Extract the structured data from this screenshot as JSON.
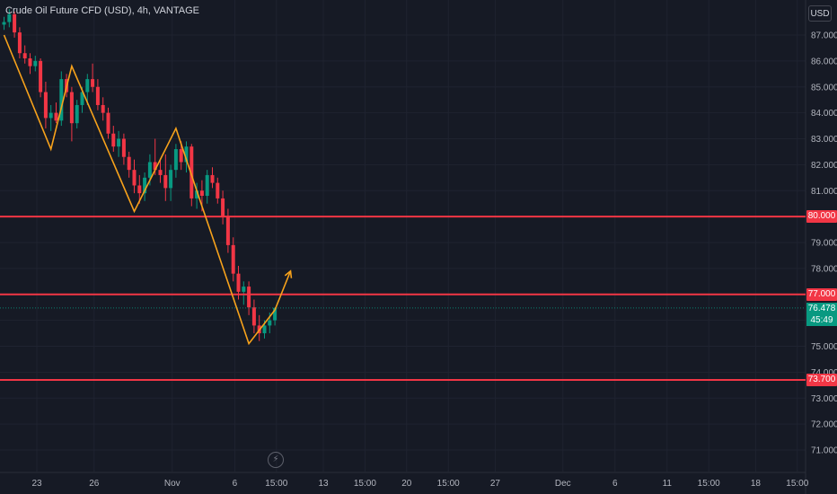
{
  "header": {
    "title": "Crude Oil Future CFD (USD), 4h, VANTAGE",
    "currency": "USD"
  },
  "colors": {
    "up": "#089981",
    "down": "#f23645",
    "level_line": "#f23645",
    "pattern": "#f7a21b",
    "background": "#161a25",
    "grid": "#1f2330",
    "axis_text": "#b2b5be"
  },
  "icons": {
    "bolt": "lightning-icon"
  },
  "chart_data": {
    "type": "candlestick",
    "title": "Crude Oil Future CFD (USD), 4h, VANTAGE",
    "y_ticks": [
      "87.000",
      "86.000",
      "85.000",
      "84.000",
      "83.000",
      "82.000",
      "81.000",
      "80.000",
      "79.000",
      "78.000",
      "77.000",
      "76.000",
      "75.000",
      "74.000",
      "73.000",
      "72.000",
      "71.000"
    ],
    "ylim": [
      70.6,
      87.9
    ],
    "x_ticks": [
      {
        "label": "23",
        "i": 0
      },
      {
        "label": "26",
        "i": 11
      },
      {
        "label": "Nov",
        "i": 26
      },
      {
        "label": "6",
        "i": 38
      },
      {
        "label": "15:00",
        "i": 46
      },
      {
        "label": "13",
        "i": 55
      },
      {
        "label": "15:00",
        "i": 63
      },
      {
        "label": "20",
        "i": 71
      },
      {
        "label": "15:00",
        "i": 79
      },
      {
        "label": "27",
        "i": 88
      },
      {
        "label": "Dec",
        "i": 101
      },
      {
        "label": "6",
        "i": 111
      },
      {
        "label": "11",
        "i": 121
      },
      {
        "label": "15:00",
        "i": 129
      },
      {
        "label": "18",
        "i": 138
      },
      {
        "label": "15:00",
        "i": 146
      }
    ],
    "candles": [
      [
        87.4,
        87.7,
        87.2,
        87.5
      ],
      [
        87.5,
        88.0,
        87.3,
        87.8
      ],
      [
        87.8,
        87.9,
        86.9,
        87.1
      ],
      [
        87.1,
        87.3,
        86.1,
        86.3
      ],
      [
        86.3,
        86.6,
        85.9,
        86.1
      ],
      [
        86.1,
        86.3,
        85.5,
        85.8
      ],
      [
        85.8,
        86.2,
        85.6,
        86.0
      ],
      [
        86.0,
        86.1,
        84.6,
        84.8
      ],
      [
        84.8,
        85.2,
        83.4,
        83.8
      ],
      [
        83.8,
        84.3,
        83.3,
        84.0
      ],
      [
        84.0,
        84.4,
        83.6,
        83.7
      ],
      [
        83.7,
        85.6,
        83.5,
        85.3
      ],
      [
        85.3,
        85.5,
        84.6,
        84.8
      ],
      [
        84.8,
        85.0,
        82.9,
        83.6
      ],
      [
        83.6,
        84.5,
        83.4,
        84.3
      ],
      [
        84.3,
        85.0,
        84.0,
        84.8
      ],
      [
        84.8,
        85.5,
        84.3,
        85.3
      ],
      [
        85.3,
        85.9,
        84.8,
        85.0
      ],
      [
        85.0,
        85.3,
        84.1,
        84.3
      ],
      [
        84.3,
        84.6,
        83.7,
        84.0
      ],
      [
        84.0,
        84.2,
        83.0,
        83.2
      ],
      [
        83.2,
        83.5,
        82.5,
        82.7
      ],
      [
        82.7,
        83.3,
        82.3,
        83.0
      ],
      [
        83.0,
        83.2,
        82.0,
        82.3
      ],
      [
        82.3,
        82.5,
        81.5,
        81.8
      ],
      [
        81.8,
        82.2,
        80.9,
        81.2
      ],
      [
        81.2,
        81.6,
        80.5,
        80.9
      ],
      [
        80.9,
        81.7,
        80.6,
        81.5
      ],
      [
        81.5,
        82.4,
        81.2,
        82.1
      ],
      [
        82.1,
        83.0,
        81.6,
        81.8
      ],
      [
        81.8,
        82.2,
        81.3,
        81.6
      ],
      [
        81.6,
        82.4,
        80.6,
        81.1
      ],
      [
        81.1,
        82.0,
        80.6,
        81.8
      ],
      [
        81.8,
        82.8,
        81.5,
        82.6
      ],
      [
        82.6,
        82.9,
        81.8,
        82.1
      ],
      [
        82.1,
        82.9,
        81.7,
        82.7
      ],
      [
        82.7,
        82.8,
        80.4,
        80.7
      ],
      [
        80.7,
        81.3,
        80.3,
        81.0
      ],
      [
        81.0,
        81.4,
        80.2,
        80.8
      ],
      [
        80.8,
        81.8,
        80.5,
        81.6
      ],
      [
        81.6,
        81.9,
        81.1,
        81.3
      ],
      [
        81.3,
        81.5,
        80.5,
        80.7
      ],
      [
        80.7,
        81.0,
        79.7,
        80.0
      ],
      [
        80.0,
        80.3,
        78.6,
        78.9
      ],
      [
        78.9,
        79.2,
        77.5,
        77.8
      ],
      [
        77.8,
        78.1,
        76.8,
        77.1
      ],
      [
        77.1,
        77.5,
        76.6,
        77.3
      ],
      [
        77.3,
        77.5,
        76.2,
        76.5
      ],
      [
        76.5,
        76.8,
        75.5,
        75.8
      ],
      [
        75.8,
        76.2,
        75.2,
        75.5
      ],
      [
        75.5,
        76.0,
        75.3,
        75.8
      ],
      [
        75.8,
        76.3,
        75.5,
        76.0
      ],
      [
        76.0,
        76.5,
        75.8,
        76.478
      ]
    ],
    "levels": [
      {
        "value": 80.0,
        "label": "80.000"
      },
      {
        "value": 77.0,
        "label": "77.000"
      },
      {
        "value": 73.7,
        "label": "73.700"
      }
    ],
    "last_price": {
      "value": 76.478,
      "label": "76.478",
      "countdown": "45:49"
    },
    "pattern_line": [
      [
        0,
        87.0
      ],
      [
        9,
        82.6
      ],
      [
        13,
        85.8
      ],
      [
        25,
        80.2
      ],
      [
        33,
        83.4
      ],
      [
        38,
        80.4
      ],
      [
        47,
        75.1
      ],
      [
        52,
        76.4
      ]
    ],
    "projection_arrow": {
      "from": [
        52,
        76.4
      ],
      "to": [
        55,
        77.9
      ]
    }
  }
}
